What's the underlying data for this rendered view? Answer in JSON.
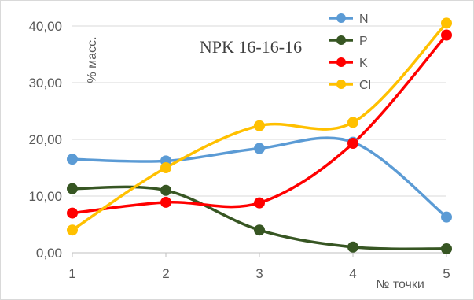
{
  "chart_data": {
    "type": "line",
    "title": "NPK 16-16-16",
    "xlabel": "№ точки",
    "ylabel": "% масс.",
    "x": [
      1,
      2,
      3,
      4,
      5
    ],
    "x_tick_labels": [
      "1",
      "2",
      "3",
      "4",
      "5"
    ],
    "y_tick_labels": [
      "0,00",
      "10,00",
      "20,00",
      "30,00",
      "40,00"
    ],
    "y_ticks": [
      0,
      10,
      20,
      30,
      40
    ],
    "ylim": [
      0,
      40
    ],
    "xlim": [
      1,
      5
    ],
    "grid": "horizontal",
    "legend_position": "top-right",
    "smooth": true,
    "series": [
      {
        "name": "N",
        "color": "#5b9bd5",
        "values": [
          16.5,
          16.2,
          18.4,
          19.5,
          6.3
        ]
      },
      {
        "name": "P",
        "color": "#375623",
        "values": [
          11.3,
          11.0,
          4.0,
          1.0,
          0.7
        ]
      },
      {
        "name": "K",
        "color": "#ff0000",
        "values": [
          7.0,
          8.9,
          8.8,
          19.3,
          38.4
        ]
      },
      {
        "name": "Cl",
        "color": "#ffc000",
        "values": [
          4.0,
          15.0,
          22.4,
          23.0,
          40.5
        ]
      }
    ]
  }
}
